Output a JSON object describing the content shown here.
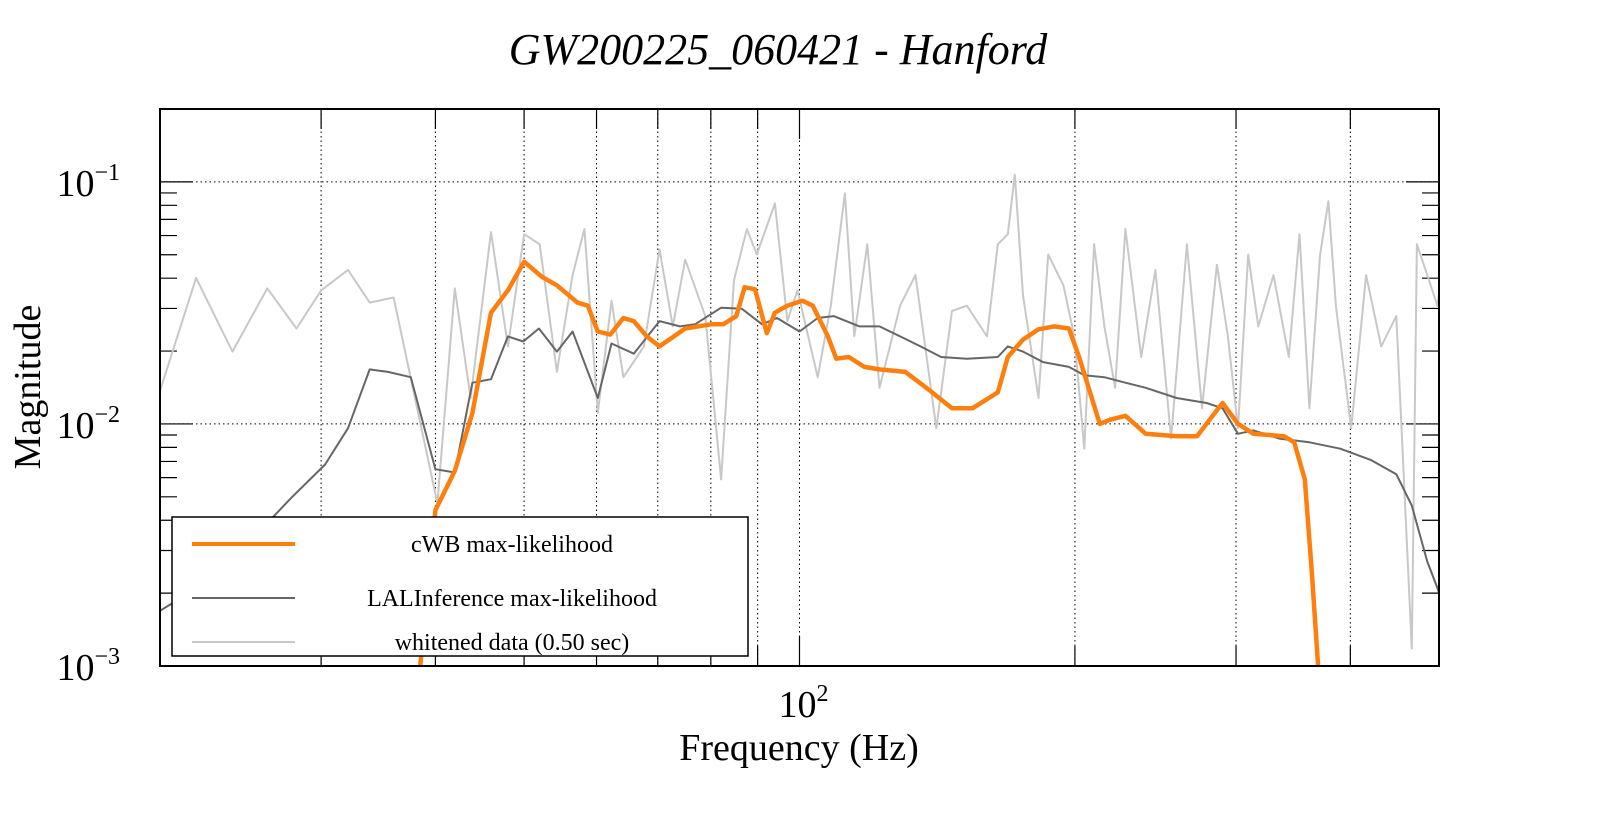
{
  "chart_data": {
    "type": "line",
    "title": "GW200225_060421 - Hanford",
    "xlabel": "Frequency (Hz)",
    "ylabel": "Magnitude",
    "xscale": "log",
    "yscale": "log",
    "xlim": [
      20,
      500
    ],
    "ylim": [
      0.001,
      0.2
    ],
    "grid": true,
    "x_gridlines": [
      30,
      40,
      50,
      60,
      70,
      80,
      90,
      100,
      200,
      300,
      400
    ],
    "y_gridlines": [
      0.1,
      0.01
    ],
    "x_tick_labels": [
      {
        "value": 100,
        "base": "10",
        "exp": "2"
      }
    ],
    "y_tick_labels": [
      {
        "value": 0.1,
        "base": "10",
        "exp": "−1"
      },
      {
        "value": 0.01,
        "base": "10",
        "exp": "−2"
      },
      {
        "value": 0.001,
        "base": "10",
        "exp": "−3"
      }
    ],
    "legend_position": "bottom-left",
    "series": [
      {
        "name": "whitened data (0.50 sec)",
        "color": "#c8c8c8",
        "x": [
          20.0,
          21.9,
          24.0,
          26.2,
          28.2,
          30.0,
          32.1,
          33.9,
          36.0,
          40.2,
          42.0,
          43.7,
          46.0,
          48.0,
          50.0,
          52.0,
          54.3,
          56.5,
          58.2,
          60.2,
          62.3,
          64.2,
          67.6,
          70.3,
          72.7,
          75.0,
          78.9,
          82.1,
          84.8,
          87.6,
          89.8,
          94.0,
          97.0,
          99.5,
          104.7,
          108.2,
          112.1,
          114.8,
          118.6,
          122.3,
          128.8,
          133.9,
          141.1,
          146.8,
          152.4,
          160.3,
          164.7,
          168.9,
          171.9,
          175.5,
          182.5,
          187.0,
          194.3,
          199.7,
          204.8,
          209.9,
          215.4,
          221.3,
          227.1,
          236.3,
          244.9,
          254.8,
          265.1,
          275.4,
          285.9,
          293.9,
          301.5,
          309.3,
          317.3,
          329.7,
          342.6,
          352.0,
          360.8,
          370.7,
          378.5,
          385.7,
          400.9,
          416.2,
          432.3,
          449.0,
          466.9,
          473.0,
          485.5,
          498.0,
          504.9
        ],
        "y": [
          0.0137,
          0.0401,
          0.0199,
          0.0363,
          0.0248,
          0.0356,
          0.0433,
          0.0317,
          0.0333,
          0.0047,
          0.0363,
          0.0128,
          0.0621,
          0.0209,
          0.0608,
          0.0552,
          0.0164,
          0.0412,
          0.0639,
          0.0111,
          0.0323,
          0.0156,
          0.0209,
          0.0526,
          0.0253,
          0.0477,
          0.0279,
          0.0059,
          0.0393,
          0.0639,
          0.0501,
          0.0815,
          0.0266,
          0.0356,
          0.0156,
          0.0308,
          0.0898,
          0.023,
          0.0552,
          0.0141,
          0.0308,
          0.0412,
          0.0096,
          0.0293,
          0.0308,
          0.023,
          0.0552,
          0.0608,
          0.107,
          0.034,
          0.0128,
          0.0501,
          0.0374,
          0.023,
          0.0079,
          0.0552,
          0.0253,
          0.0141,
          0.0639,
          0.0189,
          0.0433,
          0.0087,
          0.0552,
          0.0116,
          0.0455,
          0.023,
          0.0096,
          0.0501,
          0.0253,
          0.0412,
          0.0189,
          0.0608,
          0.0116,
          0.0501,
          0.0832,
          0.0308,
          0.0096,
          0.0412,
          0.0209,
          0.0279,
          0.00118,
          0.0552,
          0.0412,
          0.0308,
          0.0455
        ]
      },
      {
        "name": "LALInference max-likelihood",
        "color": "#666666",
        "x": [
          20.0,
          22.5,
          24.8,
          27.8,
          30.3,
          32.1,
          33.9,
          35.5,
          37.6,
          40.0,
          42.0,
          43.9,
          46.0,
          48.0,
          49.9,
          51.9,
          54.3,
          56.5,
          60.2,
          62.3,
          65.9,
          70.3,
          74.0,
          76.9,
          82.1,
          86.5,
          91.0,
          94.5,
          100.0,
          104.7,
          109.0,
          116.3,
          122.3,
          128.8,
          135.6,
          142.8,
          152.4,
          164.7,
          168.9,
          175.5,
          184.6,
          197.0,
          204.8,
          215.4,
          227.1,
          239.0,
          258.3,
          278.6,
          290.0,
          301.5,
          313.5,
          334.5,
          360.8,
          390.0,
          421.0,
          449.0,
          466.9,
          485.5,
          498.0,
          504.9
        ],
        "y": [
          0.00169,
          0.00222,
          0.00313,
          0.00493,
          0.0068,
          0.0096,
          0.0168,
          0.0164,
          0.0156,
          0.0065,
          0.0063,
          0.0148,
          0.0153,
          0.023,
          0.0219,
          0.0248,
          0.0199,
          0.0241,
          0.0128,
          0.0215,
          0.0195,
          0.0266,
          0.0253,
          0.0258,
          0.0302,
          0.0299,
          0.0258,
          0.0274,
          0.0241,
          0.0274,
          0.0279,
          0.0253,
          0.0253,
          0.023,
          0.0209,
          0.0189,
          0.0186,
          0.0189,
          0.0209,
          0.0199,
          0.018,
          0.0172,
          0.0159,
          0.0156,
          0.0148,
          0.0141,
          0.0128,
          0.0122,
          0.0116,
          0.0091,
          0.0094,
          0.0087,
          0.0084,
          0.0079,
          0.0071,
          0.0062,
          0.0046,
          0.0027,
          0.0021,
          0.0018
        ]
      },
      {
        "name": "cWB max-likelihood",
        "color": "#ff7f0e",
        "x": [
          38.5,
          40.0,
          42.0,
          43.9,
          46.0,
          48.0,
          50.0,
          52.3,
          54.3,
          57.2,
          58.7,
          60.2,
          62.1,
          64.2,
          65.9,
          68.1,
          70.3,
          75.0,
          80.0,
          82.5,
          85.3,
          87.1,
          89.4,
          92.1,
          94.0,
          97.0,
          100.7,
          103.4,
          107.4,
          109.7,
          113.2,
          117.7,
          122.3,
          130.5,
          137.6,
          146.8,
          154.5,
          164.7,
          168.9,
          175.5,
          182.5,
          189.7,
          197.0,
          202.1,
          212.9,
          218.4,
          227.1,
          239.0,
          258.3,
          272.0,
          282.8,
          290.0,
          301.5,
          313.5,
          338.5,
          347.3,
          356.7,
          363.0,
          368.8
        ],
        "y": [
          0.001,
          0.0044,
          0.0064,
          0.0111,
          0.0288,
          0.0356,
          0.0468,
          0.0405,
          0.0374,
          0.0317,
          0.0308,
          0.0241,
          0.0234,
          0.0274,
          0.0266,
          0.023,
          0.0209,
          0.0248,
          0.0258,
          0.0258,
          0.0279,
          0.0367,
          0.036,
          0.0237,
          0.0288,
          0.0308,
          0.0323,
          0.0308,
          0.023,
          0.0186,
          0.0189,
          0.0172,
          0.0168,
          0.0164,
          0.0141,
          0.0116,
          0.0116,
          0.0135,
          0.0189,
          0.0223,
          0.0246,
          0.0253,
          0.0248,
          0.0189,
          0.01,
          0.0104,
          0.0108,
          0.0091,
          0.0089,
          0.0089,
          0.0108,
          0.0122,
          0.01,
          0.0091,
          0.0089,
          0.0084,
          0.0059,
          0.00245,
          0.001
        ]
      }
    ],
    "legend": [
      {
        "label": "cWB max-likelihood",
        "color": "#ff7f0e"
      },
      {
        "label": "LALInference max-likelihood",
        "color": "#666666"
      },
      {
        "label": "whitened data (0.50 sec)",
        "color": "#c8c8c8"
      }
    ]
  }
}
